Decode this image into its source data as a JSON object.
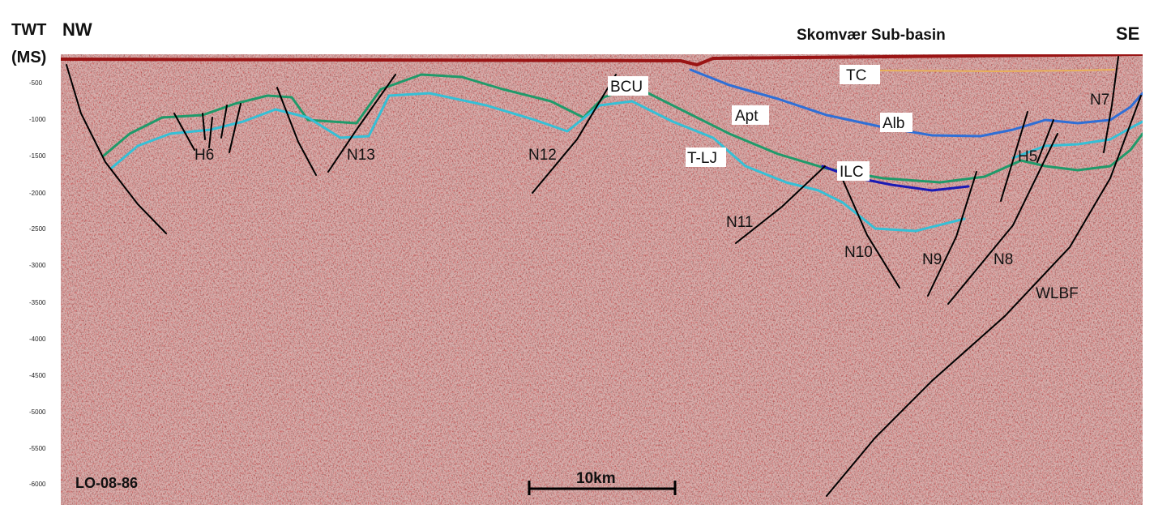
{
  "header": {
    "twt": "TWT",
    "units": "(MS)",
    "nw": "NW",
    "subbasin": "Skomvær Sub-basin",
    "se": "SE"
  },
  "y_axis": {
    "ticks": [
      "-500",
      "-1000",
      "-1500",
      "-2000",
      "-2500",
      "-3000",
      "-3500",
      "-4000",
      "-4500",
      "-5000",
      "-5500",
      "-6000"
    ]
  },
  "line_id": "LO-08-86",
  "scale_bar": {
    "label": "10km"
  },
  "horizons": [
    {
      "key": "TC",
      "label": "TC",
      "color": "#e8b15a"
    },
    {
      "key": "Alb",
      "label": "Alb",
      "color": "#2f6fd6"
    },
    {
      "key": "Apt",
      "label": "Apt",
      "color": "#1f9a6a"
    },
    {
      "key": "BCU",
      "label": "BCU",
      "color": "#1f9a6a"
    },
    {
      "key": "TLJ",
      "label": "T-LJ",
      "color": "#35c0d6"
    },
    {
      "key": "ILC",
      "label": "ILC",
      "color": "#1a1ab5"
    }
  ],
  "faults": [
    {
      "key": "H6",
      "label": "H6"
    },
    {
      "key": "N13",
      "label": "N13"
    },
    {
      "key": "N12",
      "label": "N12"
    },
    {
      "key": "N11",
      "label": "N11"
    },
    {
      "key": "N10",
      "label": "N10"
    },
    {
      "key": "N9",
      "label": "N9"
    },
    {
      "key": "N8",
      "label": "N8"
    },
    {
      "key": "H5",
      "label": "H5"
    },
    {
      "key": "N7",
      "label": "N7"
    },
    {
      "key": "WLBF",
      "label": "WLBF"
    }
  ],
  "colors": {
    "seismic_base": "#d6a3a1",
    "seismic_red": "#b0201f",
    "fault": "#000000"
  }
}
